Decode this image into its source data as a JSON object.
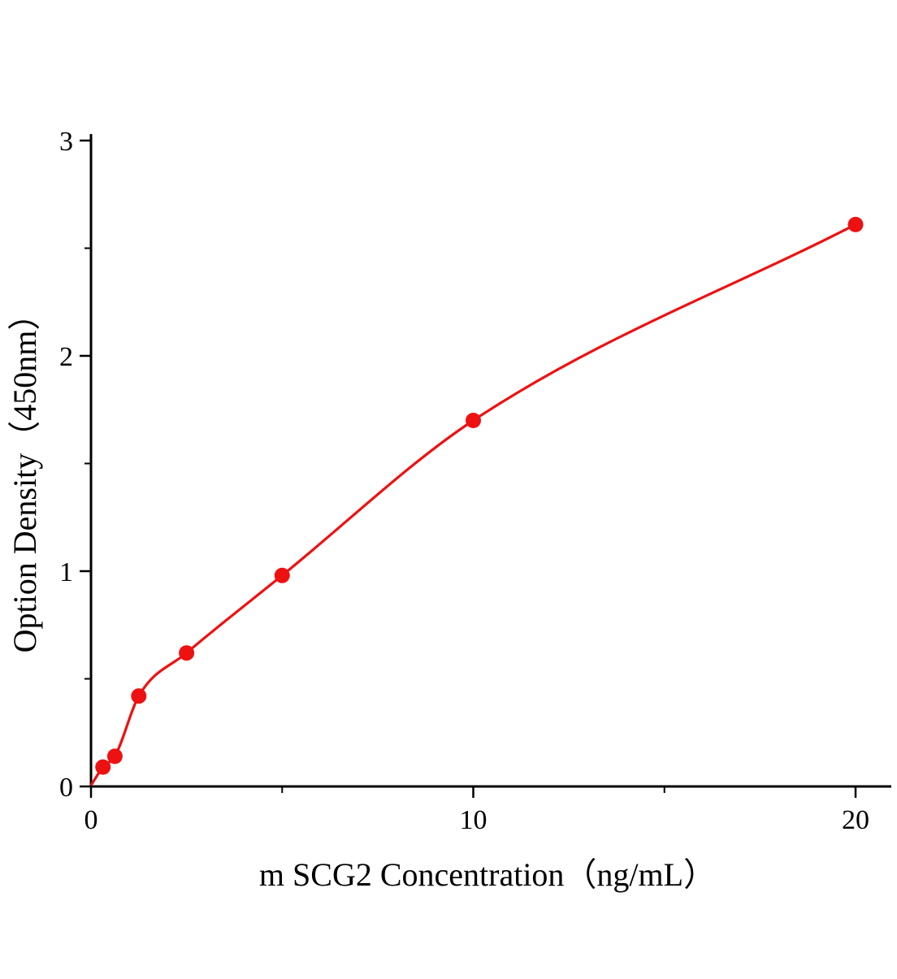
{
  "chart_data": {
    "type": "scatter",
    "title": "",
    "xlabel": "m SCG2 Concentration（ng/mL）",
    "ylabel": "Option Density（450nm）",
    "x": [
      0.313,
      0.625,
      1.25,
      2.5,
      5,
      10,
      20
    ],
    "y": [
      0.09,
      0.14,
      0.42,
      0.62,
      0.98,
      1.7,
      2.61
    ],
    "curve_start": {
      "x": 0,
      "y": 0.005
    },
    "xlim": [
      0,
      20.9
    ],
    "ylim": [
      0,
      3.03
    ],
    "x_ticks": [
      0,
      10,
      20
    ],
    "x_minor_ticks": [
      5,
      15
    ],
    "y_ticks": [
      0,
      1,
      2,
      3
    ],
    "y_minor_ticks": [
      0.5,
      1.5,
      2.5
    ],
    "grid": false,
    "legend_position": "none",
    "marker_color": "#ee1111",
    "line_color": "#ee1111",
    "axis_color": "#000000"
  }
}
